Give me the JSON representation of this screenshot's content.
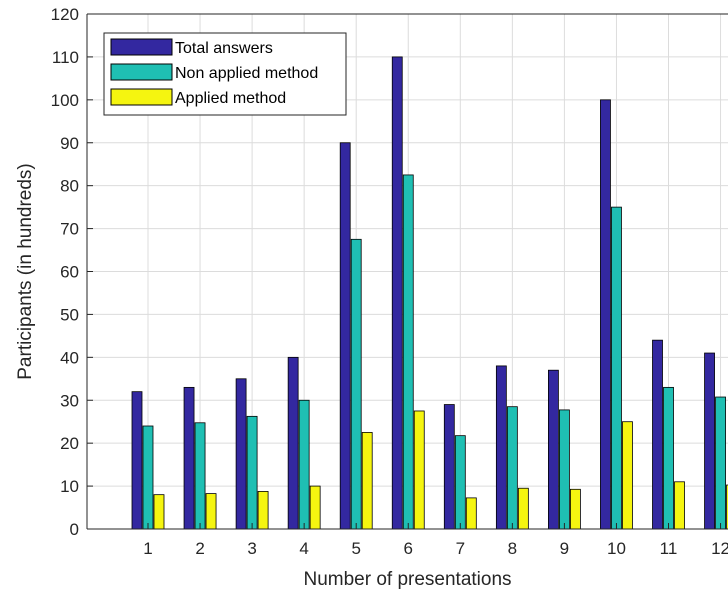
{
  "chart_data": {
    "type": "bar",
    "title": "",
    "xlabel": "Number of presentations",
    "ylabel": "Participants (in hundreds)",
    "categories": [
      "1",
      "2",
      "3",
      "4",
      "5",
      "6",
      "7",
      "8",
      "9",
      "10",
      "11",
      "12"
    ],
    "ylim": [
      0,
      120
    ],
    "yticks": [
      "0",
      "10",
      "20",
      "30",
      "40",
      "50",
      "60",
      "70",
      "80",
      "90",
      "100",
      "110",
      "120"
    ],
    "grid": true,
    "legend_position": "top-left",
    "series": [
      {
        "name": "Total answers",
        "color": "#3328a0",
        "values": [
          32,
          33,
          35,
          40,
          90,
          110,
          29,
          38,
          37,
          100,
          44,
          41
        ]
      },
      {
        "name": "Non applied method",
        "color": "#1fbfb3",
        "values": [
          24,
          24.75,
          26.25,
          30,
          67.5,
          82.5,
          21.75,
          28.5,
          27.75,
          75,
          33,
          30.75
        ]
      },
      {
        "name": "Applied method",
        "color": "#f5f510",
        "values": [
          8,
          8.25,
          8.75,
          10,
          22.5,
          27.5,
          7.25,
          9.5,
          9.25,
          25,
          11,
          10.25
        ]
      }
    ]
  }
}
